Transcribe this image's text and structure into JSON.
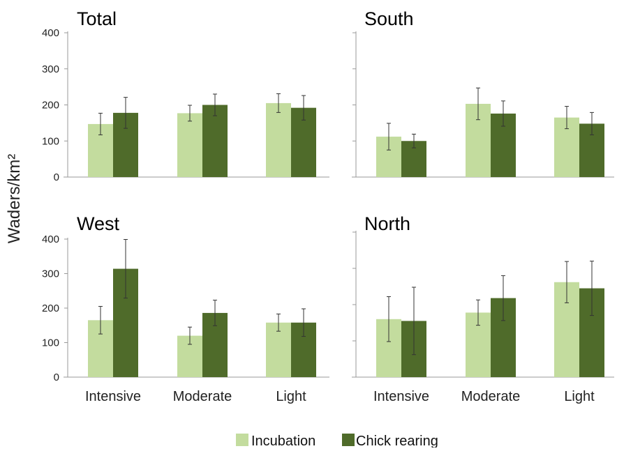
{
  "ylabel": "Waders/km²",
  "legend": {
    "items": [
      {
        "label": "Incubation",
        "color": "#c3dc9e"
      },
      {
        "label": "Chick rearing",
        "color": "#4f6b2a"
      }
    ],
    "position": "bottom-center"
  },
  "chart_data": [
    {
      "type": "bar",
      "title": "Total",
      "categories": [
        "Intensive",
        "Moderate",
        "Light"
      ],
      "ylim": [
        0,
        400
      ],
      "yticks": [
        0,
        100,
        200,
        300,
        400
      ],
      "show_tick_labels": true,
      "show_category_labels": false,
      "series": [
        {
          "name": "Incubation",
          "values": [
            147,
            177,
            205
          ],
          "error": [
            30,
            22,
            26
          ]
        },
        {
          "name": "Chick rearing",
          "values": [
            178,
            200,
            192
          ],
          "error": [
            43,
            30,
            34
          ]
        }
      ]
    },
    {
      "type": "bar",
      "title": "South",
      "categories": [
        "Intensive",
        "Moderate",
        "Light"
      ],
      "ylim": [
        0,
        400
      ],
      "yticks": [
        0,
        100,
        200,
        300,
        400
      ],
      "show_tick_labels": false,
      "show_category_labels": false,
      "series": [
        {
          "name": "Incubation",
          "values": [
            112,
            203,
            165
          ],
          "error": [
            37,
            44,
            31
          ]
        },
        {
          "name": "Chick rearing",
          "values": [
            100,
            176,
            148
          ],
          "error": [
            19,
            35,
            31
          ]
        }
      ]
    },
    {
      "type": "bar",
      "title": "West",
      "categories": [
        "Intensive",
        "Moderate",
        "Light"
      ],
      "ylim": [
        0,
        400
      ],
      "yticks": [
        0,
        100,
        200,
        300,
        400
      ],
      "show_tick_labels": true,
      "show_category_labels": true,
      "series": [
        {
          "name": "Incubation",
          "values": [
            165,
            120,
            158
          ],
          "error": [
            40,
            25,
            25
          ]
        },
        {
          "name": "Chick rearing",
          "values": [
            314,
            186,
            158
          ],
          "error": [
            85,
            37,
            40
          ]
        }
      ]
    },
    {
      "type": "bar",
      "title": "North",
      "categories": [
        "Intensive",
        "Moderate",
        "Light"
      ],
      "ylim": [
        0,
        400
      ],
      "yticks": [
        0,
        100,
        200,
        300,
        400
      ],
      "show_tick_labels": false,
      "show_category_labels": true,
      "series": [
        {
          "name": "Incubation",
          "values": [
            160,
            178,
            262
          ],
          "error": [
            62,
            35,
            57
          ]
        },
        {
          "name": "Chick rearing",
          "values": [
            155,
            218,
            245
          ],
          "error": [
            93,
            62,
            75
          ]
        }
      ]
    }
  ]
}
